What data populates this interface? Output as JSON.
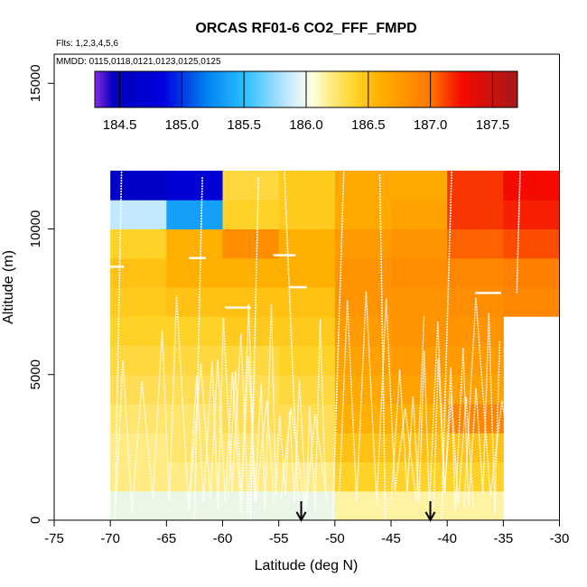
{
  "chart_data": {
    "type": "heatmap",
    "title": "ORCAS RF01-6 CO2_FFF_FMPD",
    "xlabel": "Latitude (deg N)",
    "ylabel": "Altitude (m)",
    "xlim": [
      -75,
      -30
    ],
    "ylim": [
      0,
      16000
    ],
    "x_ticks": [
      -75,
      -70,
      -65,
      -60,
      -55,
      -50,
      -45,
      -40,
      -35,
      -30
    ],
    "x_tick_labels": [
      "-75",
      "-70",
      "-65",
      "-60",
      "-55",
      "-50",
      "-45",
      "-40",
      "-35",
      "-30"
    ],
    "y_ticks": [
      0,
      5000,
      10000,
      15000
    ],
    "y_tick_labels": [
      "0",
      "5000",
      "10000",
      "15000"
    ],
    "flights_note": "Flts: 1,2,3,4,5,6",
    "dates_note": "MMDD: 0115,0118,0121,0123,0125,0125",
    "colorbar": {
      "min": 184.3,
      "max": 187.7,
      "ticks": [
        184.5,
        185.0,
        185.5,
        186.0,
        186.5,
        187.0,
        187.5
      ],
      "tick_labels": [
        "184.5",
        "185.0",
        "185.5",
        "186.0",
        "186.5",
        "187.0",
        "187.5"
      ]
    },
    "grid_x_edges": [
      -70,
      -65,
      -60,
      -55,
      -50,
      -45,
      -40,
      -35,
      -30
    ],
    "grid_y_edges": [
      0,
      1000,
      2000,
      3000,
      4000,
      5000,
      6000,
      7000,
      8000,
      9000,
      10000,
      11000,
      12000
    ],
    "cells": [
      [
        186.1,
        186.1,
        186.1,
        186.1,
        186.15,
        186.15,
        186.15,
        null
      ],
      [
        186.2,
        186.2,
        186.2,
        186.2,
        186.4,
        186.4,
        186.4,
        null
      ],
      [
        186.2,
        186.25,
        186.25,
        186.3,
        186.5,
        186.5,
        186.5,
        null
      ],
      [
        186.25,
        186.25,
        186.3,
        186.3,
        186.6,
        186.6,
        186.9,
        null
      ],
      [
        186.3,
        186.3,
        186.3,
        186.35,
        186.65,
        186.7,
        186.7,
        null
      ],
      [
        186.35,
        186.35,
        186.35,
        186.4,
        186.7,
        186.75,
        186.75,
        null
      ],
      [
        186.4,
        186.4,
        186.45,
        186.45,
        186.75,
        186.8,
        186.8,
        null
      ],
      [
        186.45,
        186.5,
        186.5,
        186.5,
        186.8,
        186.8,
        186.85,
        186.9
      ],
      [
        186.5,
        186.6,
        186.6,
        186.6,
        186.8,
        186.85,
        186.9,
        186.95
      ],
      [
        186.4,
        186.6,
        186.85,
        186.6,
        186.75,
        186.8,
        187.05,
        187.1
      ],
      [
        185.85,
        185.35,
        186.4,
        186.45,
        186.65,
        186.7,
        187.15,
        187.2
      ],
      [
        184.6,
        184.75,
        186.35,
        186.45,
        186.65,
        186.65,
        187.15,
        187.25
      ]
    ],
    "arrows_latitude": [
      -53,
      -41.5
    ]
  }
}
